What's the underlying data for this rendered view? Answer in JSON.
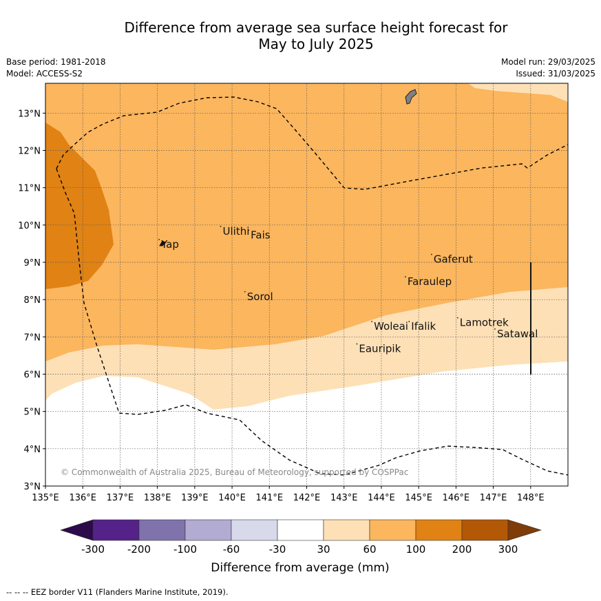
{
  "title": {
    "line1": "Difference from average sea surface height forecast for",
    "line2": "May to July 2025"
  },
  "meta": {
    "base_period": "Base period: 1981-2018",
    "model": "Model: ACCESS-S2",
    "model_run": "Model run: 29/03/2025",
    "issued": "Issued: 31/03/2025"
  },
  "map": {
    "lon_range": [
      135,
      149
    ],
    "lat_range": [
      3,
      13.8
    ],
    "x_ticks": [
      "135°E",
      "136°E",
      "137°E",
      "138°E",
      "139°E",
      "140°E",
      "141°E",
      "142°E",
      "143°E",
      "144°E",
      "145°E",
      "146°E",
      "147°E",
      "148°E"
    ],
    "y_ticks": [
      "3°N",
      "4°N",
      "5°N",
      "6°N",
      "7°N",
      "8°N",
      "9°N",
      "10°N",
      "11°N",
      "12°N",
      "13°N"
    ],
    "places": [
      {
        "name": "Ulithi",
        "lon": 139.75,
        "lat": 9.85
      },
      {
        "name": "Fais",
        "lon": 140.5,
        "lat": 9.75
      },
      {
        "name": "Yap",
        "lon": 138.1,
        "lat": 9.5
      },
      {
        "name": "Gaferut",
        "lon": 145.4,
        "lat": 9.1
      },
      {
        "name": "Faraulep",
        "lon": 144.7,
        "lat": 8.5
      },
      {
        "name": "Sorol",
        "lon": 140.4,
        "lat": 8.1
      },
      {
        "name": "Woleai",
        "lon": 143.8,
        "lat": 7.3
      },
      {
        "name": "Ifalik",
        "lon": 144.8,
        "lat": 7.3
      },
      {
        "name": "Lamotrek",
        "lon": 146.1,
        "lat": 7.4
      },
      {
        "name": "Satawal",
        "lon": 147.1,
        "lat": 7.1
      },
      {
        "name": "Eauripik",
        "lon": 143.4,
        "lat": 6.7
      }
    ],
    "copyright": "© Commonwealth of Australia 2025, Bureau of Meteorology, supported by COSPPac"
  },
  "legend": {
    "colors": {
      "lt_-300": "#2d0a4a",
      "-300_-200": "#542288",
      "-200_-100": "#8073ac",
      "-100_-60": "#b2abd2",
      "-60_-30": "#d8daeb",
      "-30_30": "#ffffff",
      "30_60": "#fee0b6",
      "60_100": "#fbb65e",
      "100_200": "#e08214",
      "200_300": "#b35806",
      "gt_300": "#7f3b08"
    },
    "tick_labels": [
      "-300",
      "-200",
      "-100",
      "-60",
      "-30",
      "30",
      "60",
      "100",
      "200",
      "300"
    ],
    "label": "Difference from average (mm)"
  },
  "footer": "-- -- -- EEZ border V11 (Flanders Marine Institute, 2019)."
}
